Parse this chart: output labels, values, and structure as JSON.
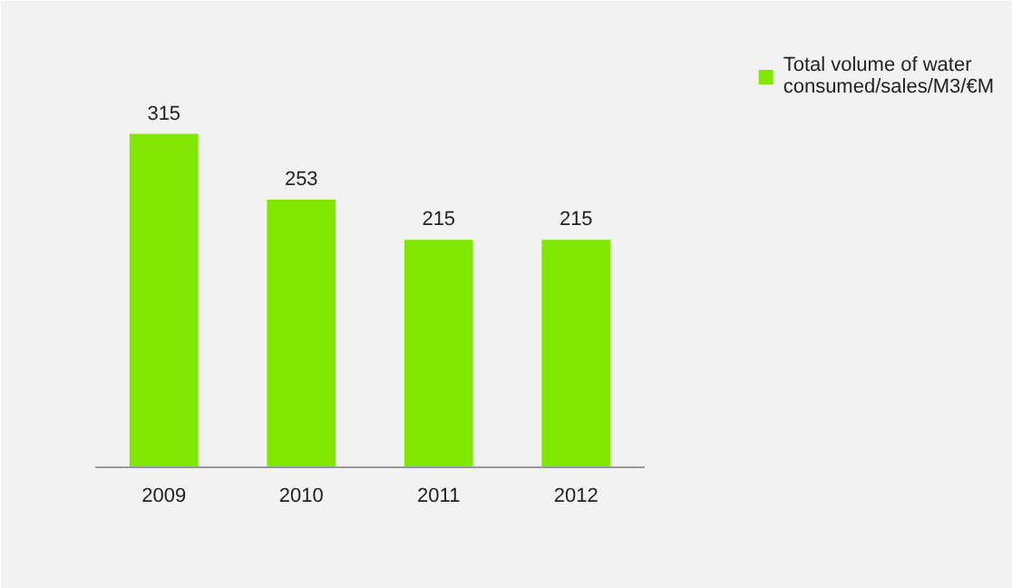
{
  "chart_data": {
    "type": "bar",
    "categories": [
      "2009",
      "2010",
      "2011",
      "2012"
    ],
    "series": [
      {
        "name": "Total volume of water consumed/sales/M3/€M",
        "color": "#80e800",
        "values": [
          315,
          253,
          215,
          215
        ]
      }
    ],
    "data_labels": true,
    "legend": "right",
    "grid": false
  }
}
